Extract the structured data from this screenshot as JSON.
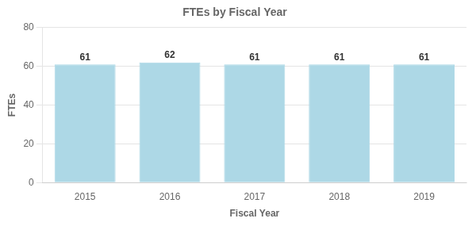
{
  "chart_data": {
    "type": "bar",
    "title": "FTEs by Fiscal Year",
    "xlabel": "Fiscal Year",
    "ylabel": "FTEs",
    "categories": [
      "2015",
      "2016",
      "2017",
      "2018",
      "2019"
    ],
    "values": [
      61,
      62,
      61,
      61,
      61
    ],
    "color": "#add8e6",
    "ylim": [
      0,
      80
    ],
    "yticks": [
      0,
      20,
      40,
      60,
      80
    ],
    "grid": true,
    "data_labels": true
  }
}
